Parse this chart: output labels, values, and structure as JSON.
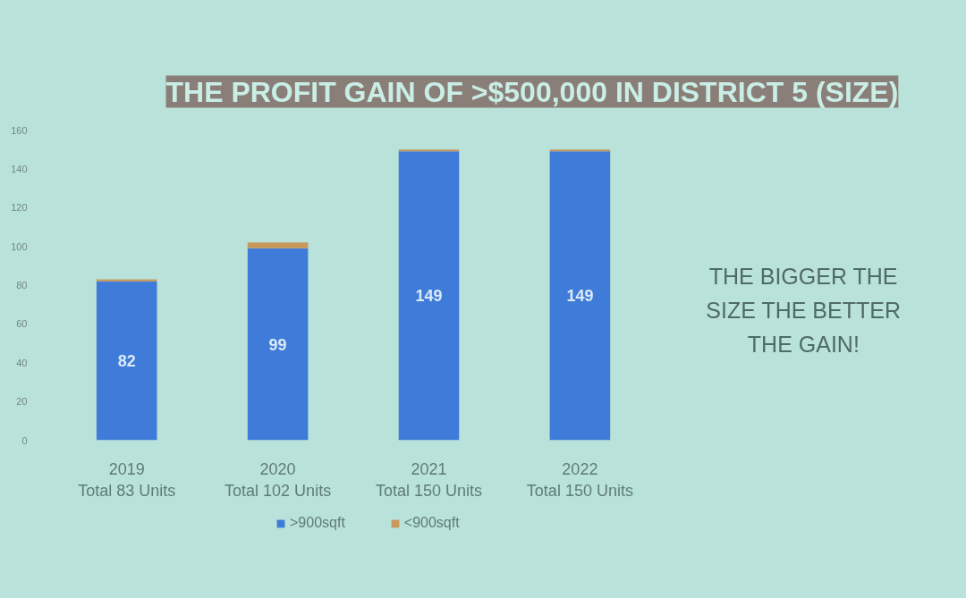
{
  "chart_data": {
    "type": "bar",
    "stacked": true,
    "title": "THE PROFIT GAIN OF >$500,000 IN DISTRICT 5 (SIZE)",
    "categories": [
      "2019\nTotal 83 Units",
      "2020\nTotal 102 Units",
      "2021\nTotal 150 Units",
      "2022\nTotal 150 Units"
    ],
    "series": [
      {
        "name": ">900sqft",
        "color": "#3f7bd8",
        "values": [
          82,
          99,
          149,
          149
        ],
        "value_labels": [
          "82",
          "99",
          "149",
          "149"
        ]
      },
      {
        "name": "<900sqft",
        "color": "#c8975a",
        "values": [
          1,
          3,
          1,
          1
        ]
      }
    ],
    "ylim": [
      0,
      160
    ],
    "yticks": [
      0,
      20,
      40,
      60,
      80,
      100,
      120,
      140,
      160
    ],
    "grid": false,
    "legend": "bottom",
    "annotations": [
      "THE BIGGER THE\nSIZE THE BETTER\nTHE GAIN!"
    ]
  }
}
